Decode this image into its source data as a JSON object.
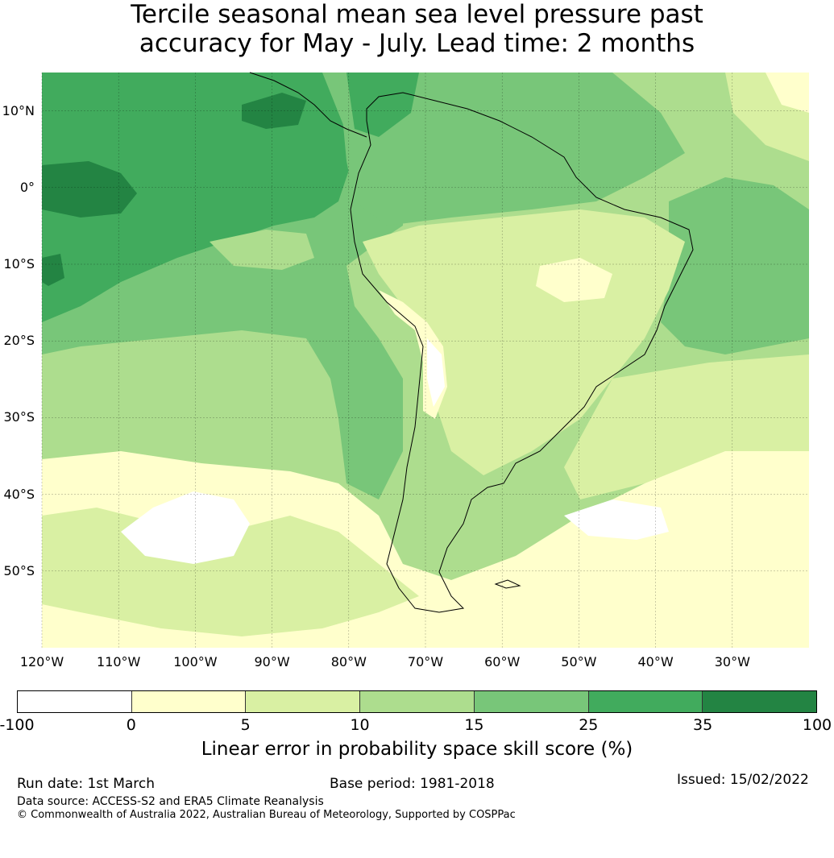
{
  "title": {
    "line1": "Tercile seasonal mean sea level pressure past",
    "line2": "accuracy for May - July. Lead time: 2 months"
  },
  "map": {
    "lon_ticks": [
      "120°W",
      "110°W",
      "100°W",
      "90°W",
      "80°W",
      "70°W",
      "60°W",
      "50°W",
      "40°W",
      "30°W"
    ],
    "lat_ticks": [
      "10°N",
      "0°",
      "10°S",
      "20°S",
      "30°S",
      "40°S",
      "50°S"
    ],
    "lon_values": [
      -120,
      -110,
      -100,
      -90,
      -80,
      -70,
      -60,
      -50,
      -40,
      -30
    ],
    "lat_values": [
      10,
      0,
      -10,
      -20,
      -30,
      -40,
      -50
    ],
    "extent": {
      "lon_min": -120,
      "lon_max": -20,
      "lat_min": -60,
      "lat_max": 15
    }
  },
  "colorbar": {
    "ticks": [
      "-100",
      "0",
      "5",
      "10",
      "15",
      "25",
      "35",
      "100"
    ],
    "colors": [
      "#ffffff",
      "#ffffcc",
      "#d9f0a3",
      "#addd8e",
      "#78c679",
      "#41ab5d",
      "#238443"
    ],
    "label": "Linear error in probability space skill score (%)"
  },
  "footer": {
    "run_date": "Run date: 1st March",
    "base_period": "Base period: 1981-2018",
    "issued": "Issued: 15/02/2022",
    "data_source": "Data source: ACCESS-S2 and ERA5 Climate Reanalysis",
    "copyright": "© Commonwealth of Australia 2022, Australian Bureau of Meteorology, Supported by COSPPac"
  }
}
